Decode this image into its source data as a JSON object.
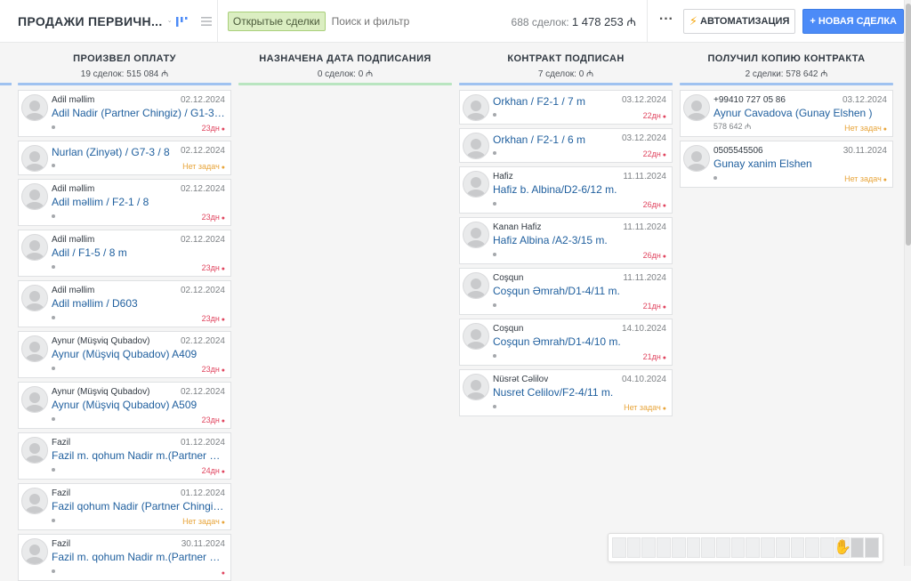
{
  "header": {
    "pipeline_title": "ПРОДАЖИ ПЕРВИЧН...",
    "filter_chip": "Открытые сделки",
    "search_placeholder": "Поиск и фильтр",
    "summary_count": "688 сделок:",
    "summary_sum": "1 478 253 ₼",
    "more_label": "···",
    "automation_label": "АВТОМАТИЗАЦИЯ",
    "new_deal_label": "+ НОВАЯ СДЕЛКА"
  },
  "columns": [
    {
      "title": "ПРОИЗВЕЛ ОПЛАТУ",
      "subtitle": "19 сделок: 515 084 ₼",
      "color": "#9fc2f0",
      "cards": [
        {
          "contact": "Adil məllim",
          "date": "02.12.2024",
          "name": "Adil Nadir (Partner Chingiz) / G1-3 / 9...",
          "task": "23дн",
          "status": "late"
        },
        {
          "contact": "",
          "date": "02.12.2024",
          "name": "Nurlan (Zinyət) / G7-3 / 8",
          "task": "Нет задач",
          "status": "none"
        },
        {
          "contact": "Adil məllim",
          "date": "02.12.2024",
          "name": "Adil məllim / F2-1 / 8",
          "task": "23дн",
          "status": "late"
        },
        {
          "contact": "Adil məllim",
          "date": "02.12.2024",
          "name": "Adil / F1-5 / 8 m",
          "task": "23дн",
          "status": "late"
        },
        {
          "contact": "Adil məllim",
          "date": "02.12.2024",
          "name": "Adil məllim / D603",
          "task": "23дн",
          "status": "late"
        },
        {
          "contact": "Aynur (Müşviq Qubadov)",
          "date": "02.12.2024",
          "name": "Aynur (Müşviq Qubadov) A409",
          "task": "23дн",
          "status": "late"
        },
        {
          "contact": "Aynur (Müşviq Qubadov)",
          "date": "02.12.2024",
          "name": "Aynur (Müşviq Qubadov) A509",
          "task": "23дн",
          "status": "late"
        },
        {
          "contact": "Fazil",
          "date": "01.12.2024",
          "name": "Fazil m. qohum Nadir m.(Partner Chin...",
          "task": "24дн",
          "status": "late"
        },
        {
          "contact": "Fazil",
          "date": "01.12.2024",
          "name": "Fazil qohum Nadir (Partner Chingiz) / ...",
          "task": "Нет задач",
          "status": "none"
        },
        {
          "contact": "Fazil",
          "date": "30.11.2024",
          "name": "Fazil m. qohum Nadir m.(Partner Chin...",
          "task": "",
          "status": "late"
        }
      ]
    },
    {
      "title": "НАЗНАЧЕНА ДАТА ПОДПИСАНИЯ",
      "subtitle": "0 сделок: 0 ₼",
      "color": "#b9e5c0",
      "cards": []
    },
    {
      "title": "КОНТРАКТ ПОДПИСАН",
      "subtitle": "7 сделок: 0 ₼",
      "color": "#9fc2f0",
      "cards": [
        {
          "contact": "",
          "date": "03.12.2024",
          "name": "Orkhan / F2-1 / 7 m",
          "task": "22дн",
          "status": "late"
        },
        {
          "contact": "",
          "date": "03.12.2024",
          "name": "Orkhan / F2-1 / 6 m",
          "task": "22дн",
          "status": "late"
        },
        {
          "contact": "Hafiz",
          "date": "11.11.2024",
          "name": "Hafiz b. Albina/D2-6/12 m.",
          "task": "26дн",
          "status": "late"
        },
        {
          "contact": "Kanan Hafiz",
          "date": "11.11.2024",
          "name": "Hafiz Albina /A2-3/15 m.",
          "task": "26дн",
          "status": "late"
        },
        {
          "contact": "Coşqun",
          "date": "11.11.2024",
          "name": "Coşqun Əmrah/D1-4/11 m.",
          "task": "21дн",
          "status": "late"
        },
        {
          "contact": "Coşqun",
          "date": "14.10.2024",
          "name": "Coşqun Əmrah/D1-4/10 m.",
          "task": "21дн",
          "status": "late"
        },
        {
          "contact": "Nüsrət Cəlilov",
          "date": "04.10.2024",
          "name": "Nusret Celilov/F2-4/11 m.",
          "task": "Нет задач",
          "status": "none"
        }
      ]
    },
    {
      "title": "ПОЛУЧИЛ КОПИЮ КОНТРАКТА",
      "subtitle": "2 сделки: 578 642 ₼",
      "color": "#9fc2f0",
      "cards": [
        {
          "contact": "+99410 727 05 86",
          "date": "03.12.2024",
          "name": "Aynur Cavadova (Gunay Elshen )",
          "price": "578 642 ₼",
          "task": "Нет задач",
          "status": "none"
        },
        {
          "contact": "0505545506",
          "date": "30.11.2024",
          "name": "Gunay xanim Elshen",
          "task": "Нет задач",
          "status": "none"
        }
      ]
    }
  ],
  "pager": {
    "cells": 18,
    "active_index": 16
  }
}
